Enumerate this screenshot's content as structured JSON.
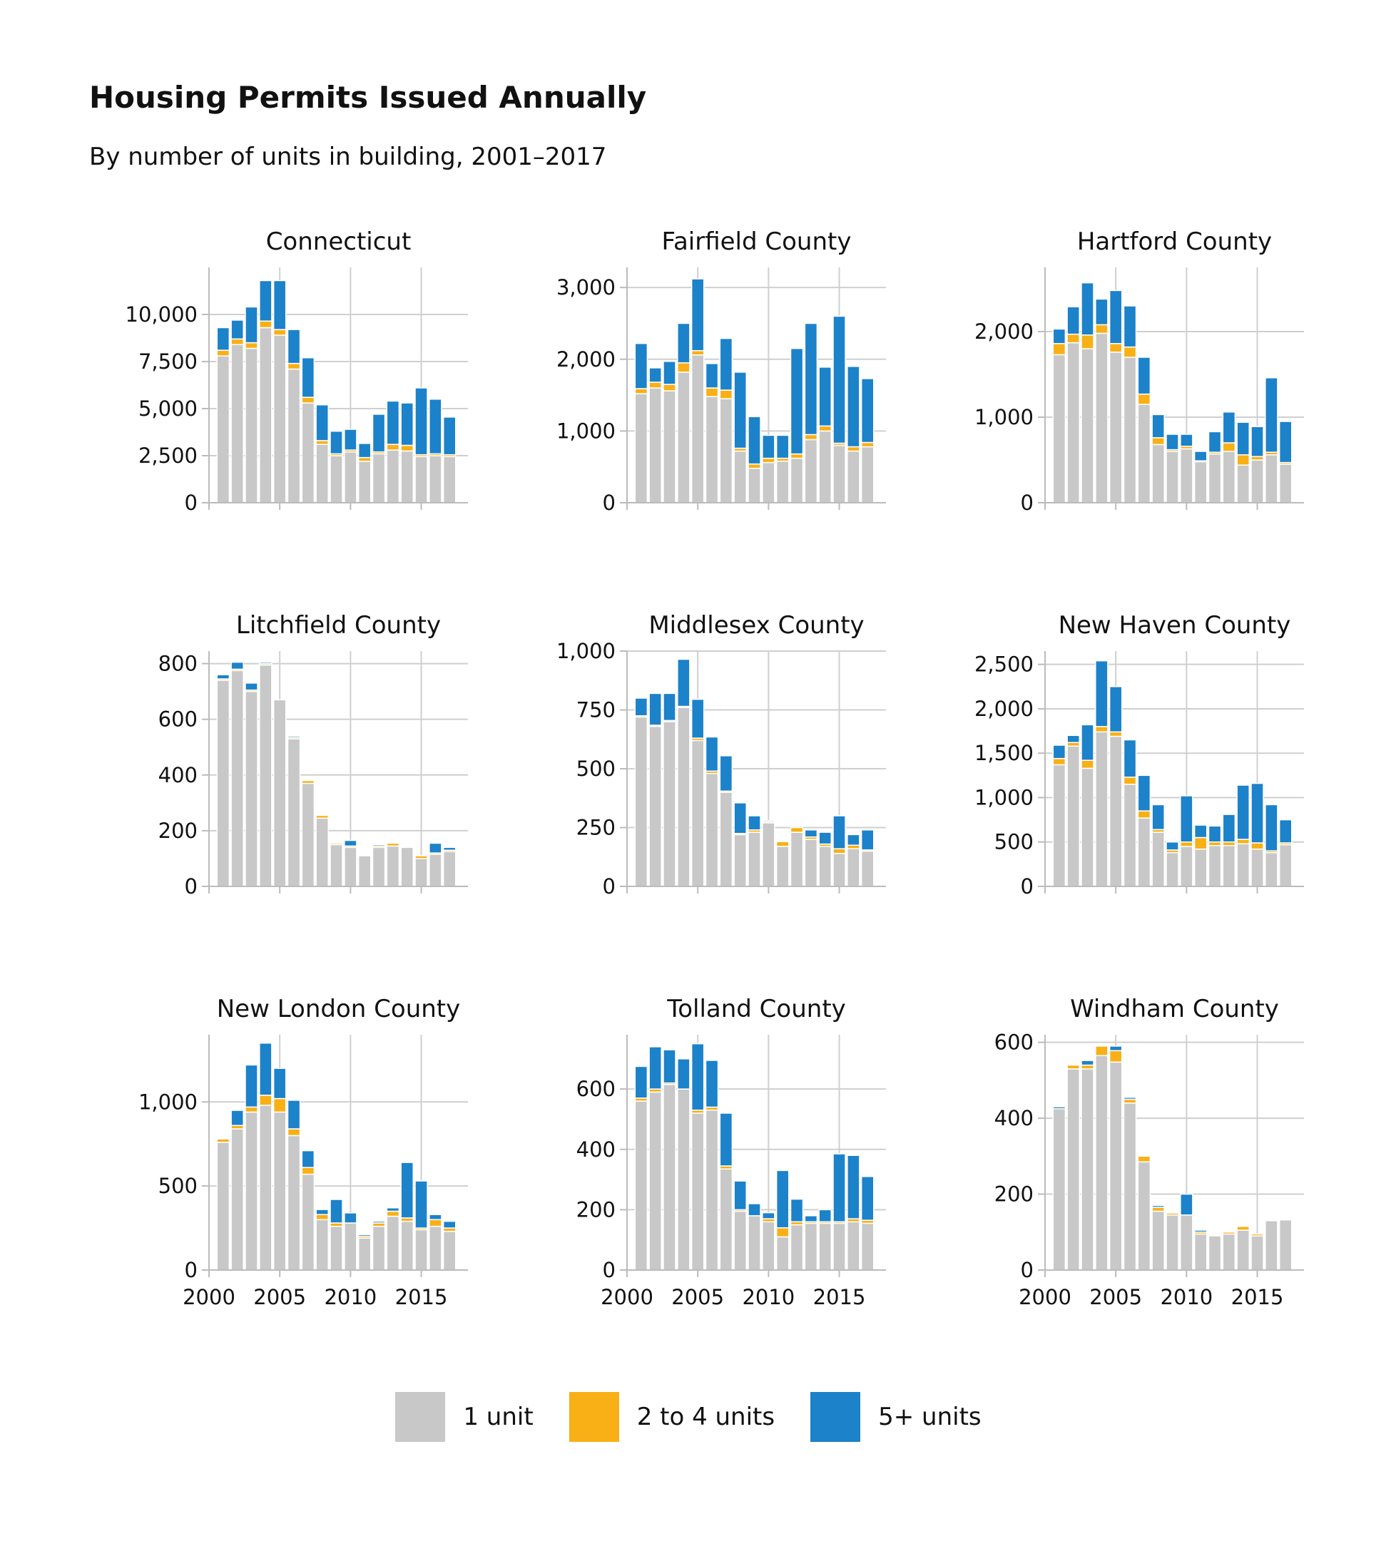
{
  "title": "Housing Permits Issued Annually",
  "subtitle": "By number of units in building, 2001–2017",
  "colors": {
    "one_unit": "#c8c8c8",
    "two_to_four": "#f8b016",
    "five_plus": "#1c82c9"
  },
  "legend": [
    {
      "label": "1 unit",
      "color": "#c8c8c8"
    },
    {
      "label": "2 to 4 units",
      "color": "#f8b016"
    },
    {
      "label": "5+ units",
      "color": "#1c82c9"
    }
  ],
  "chart_data": [
    {
      "type": "bar",
      "stacked": true,
      "title": "Connecticut",
      "x": [
        2001,
        2002,
        2003,
        2004,
        2005,
        2006,
        2007,
        2008,
        2009,
        2010,
        2011,
        2012,
        2013,
        2014,
        2015,
        2016,
        2017
      ],
      "xlim": [
        2000,
        2018.3
      ],
      "xticks": [
        "2000",
        "2005",
        "2010",
        "2015"
      ],
      "show_xticks": false,
      "ylim": [
        0,
        12500
      ],
      "yticks": [
        0,
        2500,
        5000,
        7500,
        10000
      ],
      "ytick_labels": [
        "0",
        "2,500",
        "5,000",
        "7,500",
        "10,000"
      ],
      "series": [
        {
          "name": "1 unit",
          "values": [
            7800,
            8400,
            8200,
            9300,
            8900,
            7100,
            5300,
            3100,
            2500,
            2700,
            2200,
            2600,
            2800,
            2750,
            2450,
            2500,
            2450
          ]
        },
        {
          "name": "2 to 4 units",
          "values": [
            300,
            300,
            300,
            350,
            300,
            300,
            300,
            200,
            100,
            100,
            200,
            100,
            300,
            300,
            100,
            100,
            100
          ]
        },
        {
          "name": "5+ units",
          "values": [
            1200,
            1000,
            1900,
            2150,
            2600,
            1800,
            2100,
            1900,
            1200,
            1100,
            750,
            2000,
            2300,
            2250,
            3550,
            2900,
            2000
          ]
        }
      ]
    },
    {
      "type": "bar",
      "stacked": true,
      "title": "Fairfield County",
      "x": [
        2001,
        2002,
        2003,
        2004,
        2005,
        2006,
        2007,
        2008,
        2009,
        2010,
        2011,
        2012,
        2013,
        2014,
        2015,
        2016,
        2017
      ],
      "xlim": [
        2000,
        2018.3
      ],
      "xticks": [
        "2000",
        "2005",
        "2010",
        "2015"
      ],
      "show_xticks": false,
      "ylim": [
        0,
        3280
      ],
      "yticks": [
        0,
        1000,
        2000,
        3000
      ],
      "ytick_labels": [
        "0",
        "1,000",
        "2,000",
        "3,000"
      ],
      "series": [
        {
          "name": "1 unit",
          "values": [
            1520,
            1600,
            1560,
            1820,
            2060,
            1480,
            1450,
            720,
            480,
            560,
            580,
            620,
            880,
            1000,
            800,
            720,
            780
          ]
        },
        {
          "name": "2 to 4 units",
          "values": [
            70,
            80,
            90,
            130,
            60,
            120,
            120,
            40,
            60,
            60,
            40,
            60,
            70,
            70,
            30,
            60,
            60
          ]
        },
        {
          "name": "5+ units",
          "values": [
            630,
            200,
            320,
            550,
            1000,
            340,
            720,
            1060,
            660,
            320,
            320,
            1470,
            1550,
            820,
            1770,
            1120,
            890
          ]
        }
      ]
    },
    {
      "type": "bar",
      "stacked": true,
      "title": "Hartford County",
      "x": [
        2001,
        2002,
        2003,
        2004,
        2005,
        2006,
        2007,
        2008,
        2009,
        2010,
        2011,
        2012,
        2013,
        2014,
        2015,
        2016,
        2017
      ],
      "xlim": [
        2000,
        2018.3
      ],
      "xticks": [
        "2000",
        "2005",
        "2010",
        "2015"
      ],
      "show_xticks": false,
      "ylim": [
        0,
        2750
      ],
      "yticks": [
        0,
        1000,
        2000
      ],
      "ytick_labels": [
        "0",
        "1,000",
        "2,000"
      ],
      "series": [
        {
          "name": "1 unit",
          "values": [
            1730,
            1870,
            1800,
            1980,
            1760,
            1700,
            1150,
            680,
            600,
            630,
            480,
            570,
            600,
            440,
            500,
            560,
            450
          ]
        },
        {
          "name": "2 to 4 units",
          "values": [
            130,
            100,
            160,
            100,
            100,
            120,
            120,
            80,
            20,
            30,
            10,
            20,
            100,
            120,
            40,
            30,
            20
          ]
        },
        {
          "name": "5+ units",
          "values": [
            170,
            320,
            610,
            300,
            620,
            480,
            430,
            270,
            180,
            140,
            110,
            240,
            360,
            380,
            350,
            870,
            480
          ]
        }
      ]
    },
    {
      "type": "bar",
      "stacked": true,
      "title": "Litchfield County",
      "x": [
        2001,
        2002,
        2003,
        2004,
        2005,
        2006,
        2007,
        2008,
        2009,
        2010,
        2011,
        2012,
        2013,
        2014,
        2015,
        2016,
        2017
      ],
      "xlim": [
        2000,
        2018.3
      ],
      "xticks": [
        "2000",
        "2005",
        "2010",
        "2015"
      ],
      "show_xticks": false,
      "ylim": [
        0,
        845
      ],
      "yticks": [
        0,
        200,
        400,
        600,
        800
      ],
      "ytick_labels": [
        "0",
        "200",
        "400",
        "600",
        "800"
      ],
      "series": [
        {
          "name": "1 unit",
          "values": [
            740,
            775,
            700,
            795,
            670,
            530,
            370,
            245,
            150,
            140,
            110,
            140,
            145,
            140,
            100,
            115,
            125
          ]
        },
        {
          "name": "2 to 4 units",
          "values": [
            5,
            5,
            5,
            5,
            0,
            5,
            10,
            10,
            5,
            5,
            0,
            5,
            10,
            0,
            10,
            5,
            5
          ]
        },
        {
          "name": "5+ units",
          "values": [
            15,
            25,
            25,
            5,
            0,
            5,
            0,
            0,
            0,
            20,
            0,
            5,
            0,
            0,
            0,
            35,
            10
          ]
        }
      ]
    },
    {
      "type": "bar",
      "stacked": true,
      "title": "Middlesex County",
      "x": [
        2001,
        2002,
        2003,
        2004,
        2005,
        2006,
        2007,
        2008,
        2009,
        2010,
        2011,
        2012,
        2013,
        2014,
        2015,
        2016,
        2017
      ],
      "xlim": [
        2000,
        2018.3
      ],
      "xticks": [
        "2000",
        "2005",
        "2010",
        "2015"
      ],
      "show_xticks": false,
      "ylim": [
        0,
        1000
      ],
      "yticks": [
        0,
        250,
        500,
        750,
        1000
      ],
      "ytick_labels": [
        "0",
        "250",
        "500",
        "750",
        "1,000"
      ],
      "series": [
        {
          "name": "1 unit",
          "values": [
            720,
            680,
            700,
            760,
            620,
            480,
            400,
            220,
            230,
            270,
            170,
            230,
            200,
            170,
            140,
            160,
            150
          ]
        },
        {
          "name": "2 to 4 units",
          "values": [
            5,
            5,
            5,
            5,
            10,
            10,
            5,
            5,
            10,
            5,
            20,
            20,
            10,
            10,
            20,
            15,
            5
          ]
        },
        {
          "name": "5+ units",
          "values": [
            75,
            135,
            115,
            200,
            165,
            145,
            150,
            130,
            60,
            5,
            0,
            0,
            30,
            50,
            140,
            45,
            85
          ]
        }
      ]
    },
    {
      "type": "bar",
      "stacked": true,
      "title": "New Haven County",
      "x": [
        2001,
        2002,
        2003,
        2004,
        2005,
        2006,
        2007,
        2008,
        2009,
        2010,
        2011,
        2012,
        2013,
        2014,
        2015,
        2016,
        2017
      ],
      "xlim": [
        2000,
        2018.3
      ],
      "xticks": [
        "2000",
        "2005",
        "2010",
        "2015"
      ],
      "show_xticks": false,
      "ylim": [
        0,
        2650
      ],
      "yticks": [
        0,
        500,
        1000,
        1500,
        2000,
        2500
      ],
      "ytick_labels": [
        "0",
        "500",
        "1,000",
        "1,500",
        "2,000",
        "2,500"
      ],
      "series": [
        {
          "name": "1 unit",
          "values": [
            1370,
            1580,
            1330,
            1740,
            1690,
            1150,
            770,
            610,
            380,
            450,
            420,
            460,
            460,
            480,
            420,
            380,
            470
          ]
        },
        {
          "name": "2 to 4 units",
          "values": [
            70,
            40,
            90,
            60,
            50,
            80,
            80,
            30,
            30,
            50,
            130,
            40,
            40,
            50,
            70,
            20,
            20
          ]
        },
        {
          "name": "5+ units",
          "values": [
            150,
            80,
            400,
            740,
            510,
            420,
            400,
            280,
            90,
            520,
            140,
            180,
            310,
            610,
            670,
            520,
            260
          ]
        }
      ]
    },
    {
      "type": "bar",
      "stacked": true,
      "title": "New London County",
      "x": [
        2001,
        2002,
        2003,
        2004,
        2005,
        2006,
        2007,
        2008,
        2009,
        2010,
        2011,
        2012,
        2013,
        2014,
        2015,
        2016,
        2017
      ],
      "xlim": [
        2000,
        2018.3
      ],
      "xticks": [
        "2000",
        "2005",
        "2010",
        "2015"
      ],
      "show_xticks": true,
      "ylim": [
        0,
        1400
      ],
      "yticks": [
        0,
        500,
        1000
      ],
      "ytick_labels": [
        "0",
        "500",
        "1,000"
      ],
      "series": [
        {
          "name": "1 unit",
          "values": [
            760,
            840,
            940,
            980,
            940,
            800,
            570,
            300,
            260,
            280,
            190,
            260,
            320,
            290,
            240,
            260,
            230
          ]
        },
        {
          "name": "2 to 4 units",
          "values": [
            20,
            20,
            30,
            60,
            80,
            40,
            40,
            30,
            20,
            0,
            10,
            20,
            30,
            20,
            10,
            40,
            20
          ]
        },
        {
          "name": "5+ units",
          "values": [
            0,
            90,
            250,
            310,
            180,
            170,
            100,
            30,
            140,
            60,
            10,
            10,
            20,
            330,
            280,
            30,
            40
          ]
        }
      ]
    },
    {
      "type": "bar",
      "stacked": true,
      "title": "Tolland County",
      "x": [
        2001,
        2002,
        2003,
        2004,
        2005,
        2006,
        2007,
        2008,
        2009,
        2010,
        2011,
        2012,
        2013,
        2014,
        2015,
        2016,
        2017
      ],
      "xlim": [
        2000,
        2018.3
      ],
      "xticks": [
        "2000",
        "2005",
        "2010",
        "2015"
      ],
      "show_xticks": true,
      "ylim": [
        0,
        780
      ],
      "yticks": [
        0,
        200,
        400,
        600
      ],
      "ytick_labels": [
        "0",
        "200",
        "400",
        "600"
      ],
      "series": [
        {
          "name": "1 unit",
          "values": [
            560,
            590,
            615,
            600,
            520,
            530,
            335,
            195,
            180,
            160,
            110,
            150,
            155,
            155,
            155,
            160,
            155
          ]
        },
        {
          "name": "2 to 4 units",
          "values": [
            10,
            10,
            5,
            0,
            10,
            10,
            10,
            5,
            0,
            10,
            30,
            10,
            5,
            5,
            5,
            10,
            10
          ]
        },
        {
          "name": "5+ units",
          "values": [
            105,
            140,
            110,
            100,
            220,
            155,
            175,
            95,
            40,
            20,
            190,
            75,
            20,
            40,
            225,
            210,
            145
          ]
        }
      ]
    },
    {
      "type": "bar",
      "stacked": true,
      "title": "Windham County",
      "x": [
        2001,
        2002,
        2003,
        2004,
        2005,
        2006,
        2007,
        2008,
        2009,
        2010,
        2011,
        2012,
        2013,
        2014,
        2015,
        2016,
        2017
      ],
      "xlim": [
        2000,
        2018.3
      ],
      "xticks": [
        "2000",
        "2005",
        "2010",
        "2015"
      ],
      "show_xticks": true,
      "ylim": [
        0,
        620
      ],
      "yticks": [
        0,
        200,
        400,
        600
      ],
      "ytick_labels": [
        "0",
        "200",
        "400",
        "600"
      ],
      "series": [
        {
          "name": "1 unit",
          "values": [
            425,
            530,
            530,
            565,
            548,
            440,
            285,
            155,
            145,
            145,
            95,
            90,
            95,
            105,
            90,
            130,
            132
          ]
        },
        {
          "name": "2 to 4 units",
          "values": [
            0,
            10,
            10,
            25,
            30,
            10,
            15,
            10,
            5,
            0,
            5,
            0,
            5,
            10,
            5,
            0,
            0
          ]
        },
        {
          "name": "5+ units",
          "values": [
            5,
            0,
            12,
            0,
            12,
            5,
            0,
            5,
            0,
            55,
            5,
            0,
            0,
            0,
            0,
            0,
            0
          ]
        }
      ]
    }
  ]
}
